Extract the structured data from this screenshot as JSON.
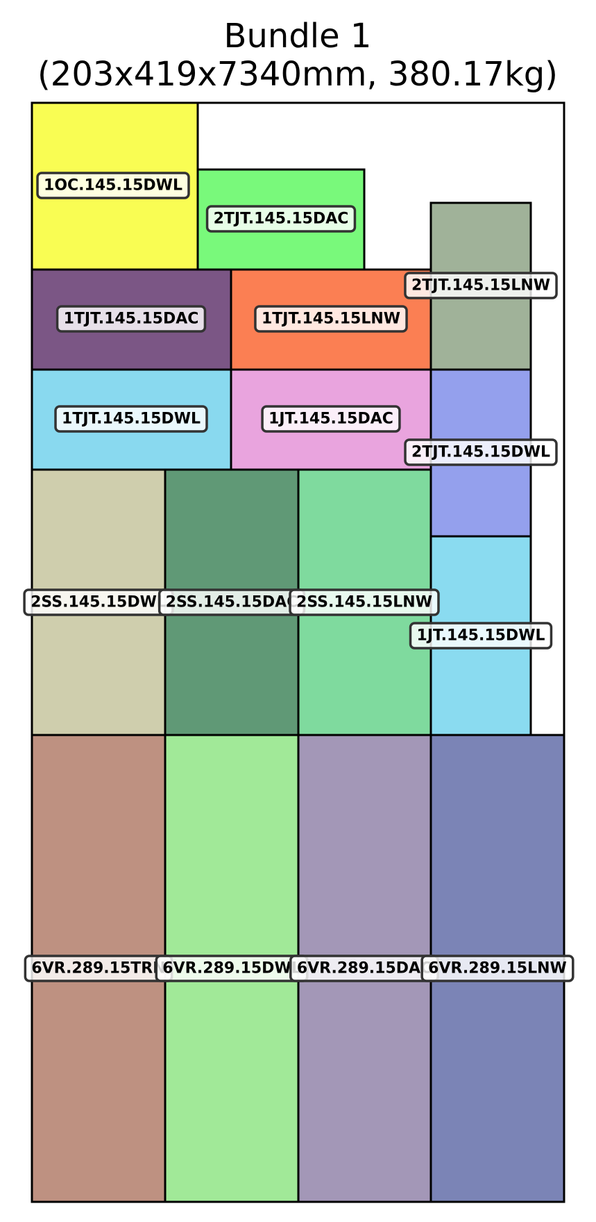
{
  "title": {
    "line1": "Bundle 1",
    "line2": "(203x419x7340mm, 380.17kg)"
  },
  "pieces": [
    {
      "id": "p1",
      "label": "1OC.145.15DWL",
      "color": "#f9fd53"
    },
    {
      "id": "p2",
      "label": "2TJT.145.15DAC",
      "color": "#79f97b"
    },
    {
      "id": "p3",
      "label": "2TJT.145.15LNW",
      "color": "#a0b299"
    },
    {
      "id": "p4",
      "label": "1TJT.145.15DAC",
      "color": "#7b5685"
    },
    {
      "id": "p5",
      "label": "1TJT.145.15LNW",
      "color": "#fb7f53"
    },
    {
      "id": "p6",
      "label": "1TJT.145.15DWL",
      "color": "#89d9ef"
    },
    {
      "id": "p7",
      "label": "1JT.145.15DAC",
      "color": "#e9a4de"
    },
    {
      "id": "p8",
      "label": "2TJT.145.15DWL",
      "color": "#94a0ed"
    },
    {
      "id": "p9",
      "label": "2SS.145.15DWL",
      "color": "#cfcead"
    },
    {
      "id": "p10",
      "label": "2SS.145.15DAC",
      "color": "#609976"
    },
    {
      "id": "p11",
      "label": "2SS.145.15LNW",
      "color": "#7fda9e"
    },
    {
      "id": "p12",
      "label": "1JT.145.15DWL",
      "color": "#8adbf0"
    },
    {
      "id": "p13",
      "label": "6VR.289.15TRN",
      "color": "#be9181"
    },
    {
      "id": "p14",
      "label": "6VR.289.15DWL",
      "color": "#a1e998"
    },
    {
      "id": "p15",
      "label": "6VR.289.15DAC",
      "color": "#a397b7"
    },
    {
      "id": "p16",
      "label": "6VR.289.15LNW",
      "color": "#7b84b6"
    }
  ]
}
